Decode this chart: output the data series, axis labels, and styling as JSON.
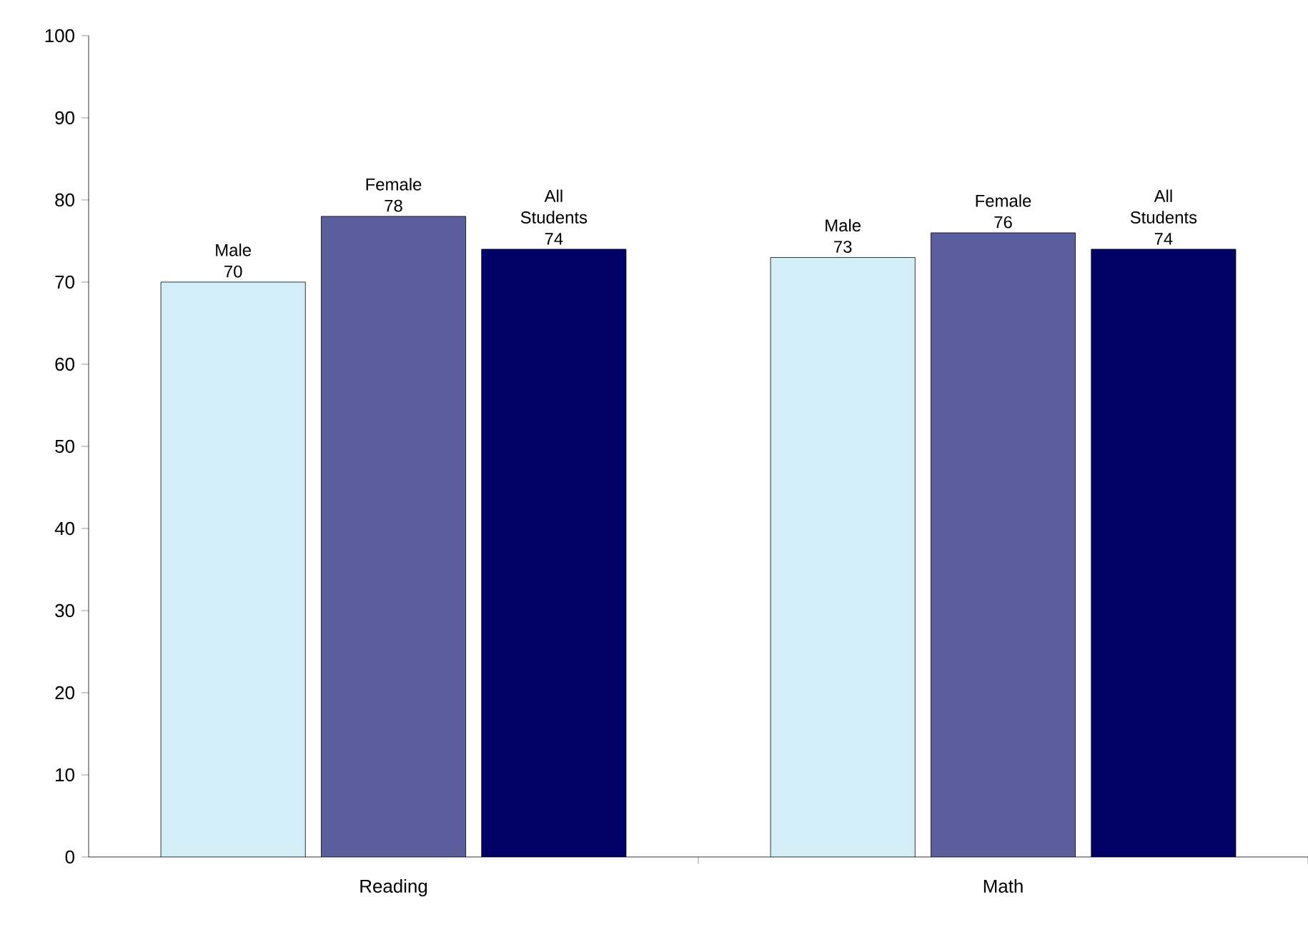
{
  "chart_data": {
    "type": "bar",
    "categories": [
      "Reading",
      "Math"
    ],
    "series": [
      {
        "name": "Male",
        "color": "#d4eef8",
        "values": [
          70,
          73
        ]
      },
      {
        "name": "Female",
        "color": "#5a5e9c",
        "values": [
          78,
          76
        ]
      },
      {
        "name": "All Students",
        "color": "#000066",
        "values": [
          74,
          74
        ]
      }
    ],
    "ylim": [
      0,
      100
    ],
    "yticks": [
      0,
      10,
      20,
      30,
      40,
      50,
      60,
      70,
      80,
      90,
      100
    ],
    "data_labels": true,
    "grid": false,
    "legend": false
  }
}
